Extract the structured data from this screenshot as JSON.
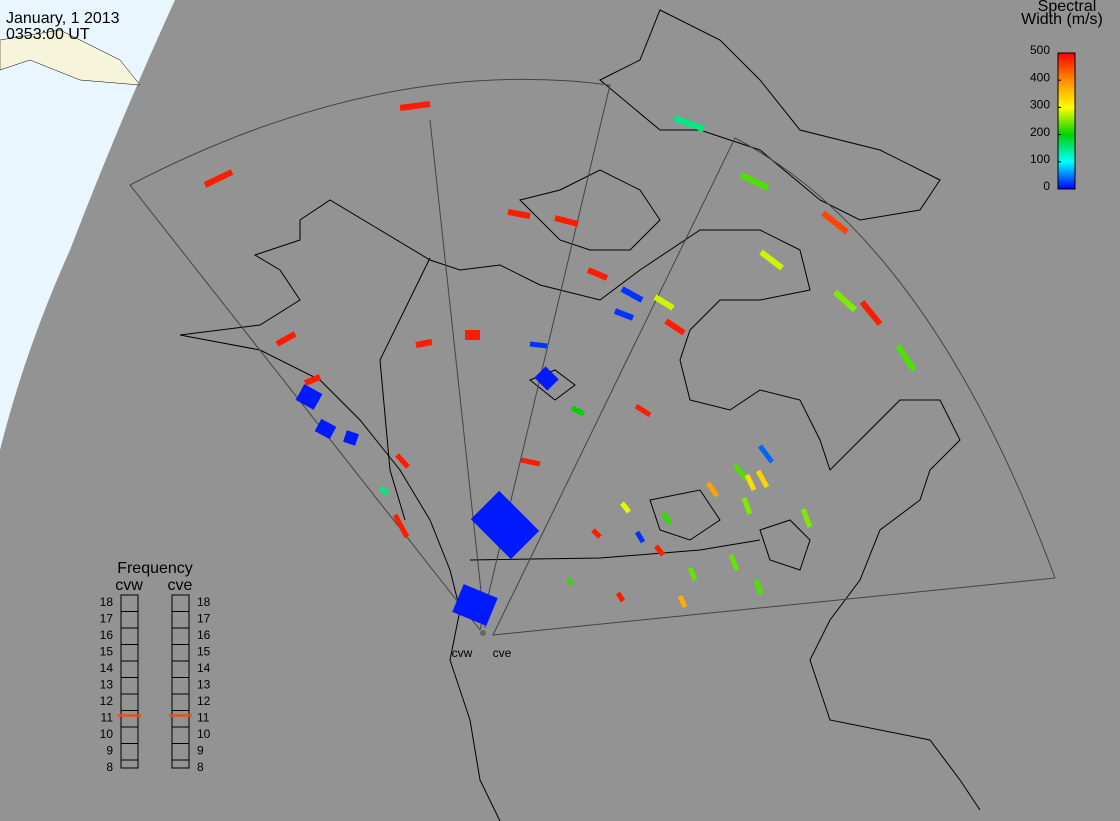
{
  "header": {
    "date": "January, 1 2013",
    "time": "0353:00 UT"
  },
  "colorbar": {
    "title_line1": "Spectral",
    "title_line2": "Width (m/s)",
    "range": [
      0,
      500
    ],
    "ticks": [
      0,
      100,
      200,
      300,
      400,
      500
    ]
  },
  "frequency": {
    "title": "Frequency",
    "range": [
      8,
      18
    ],
    "ticks": [
      8,
      9,
      10,
      11,
      12,
      13,
      14,
      15,
      16,
      17,
      18
    ],
    "radars": [
      {
        "name": "cvw",
        "value": 10.7
      },
      {
        "name": "cve",
        "value": 10.7
      }
    ]
  },
  "radar_sites": [
    "cvw",
    "cve"
  ],
  "echo_widths": [
    480,
    480,
    150,
    480,
    480,
    230,
    450,
    280,
    480,
    20,
    280,
    20,
    480,
    250,
    480,
    230,
    480,
    480,
    480,
    20,
    480,
    200,
    480,
    480,
    40,
    230,
    330,
    340,
    380,
    290,
    220,
    250,
    250,
    480,
    20,
    480,
    240,
    240,
    230,
    480,
    370,
    220,
    150,
    480,
    480,
    10,
    10,
    10,
    10,
    10,
    10
  ]
}
